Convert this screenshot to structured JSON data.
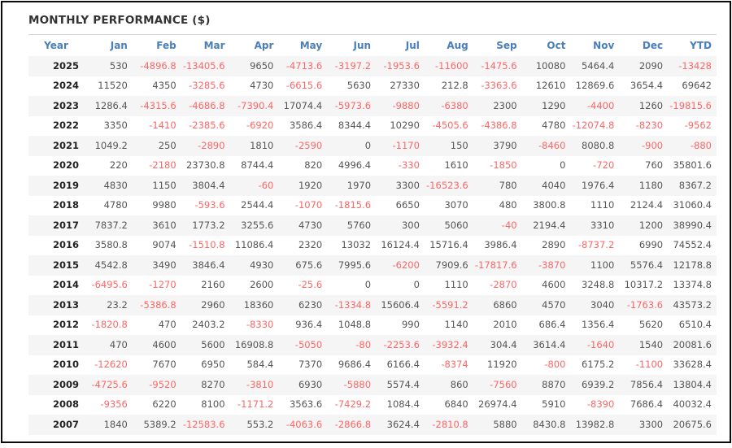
{
  "title": "MONTHLY PERFORMANCE ($)",
  "table": {
    "columns": [
      "Year",
      "Jan",
      "Feb",
      "Mar",
      "Apr",
      "May",
      "Jun",
      "Jul",
      "Aug",
      "Sep",
      "Oct",
      "Nov",
      "Dec",
      "YTD"
    ],
    "rows": [
      [
        "2025",
        "530",
        "-4896.8",
        "-13405.6",
        "9650",
        "-4713.6",
        "-3197.2",
        "-1953.6",
        "-11600",
        "-1475.6",
        "10080",
        "5464.4",
        "2090",
        "-13428"
      ],
      [
        "2024",
        "11520",
        "4350",
        "-3285.6",
        "4730",
        "-6615.6",
        "5630",
        "27330",
        "212.8",
        "-3363.6",
        "12610",
        "12869.6",
        "3654.4",
        "69642"
      ],
      [
        "2023",
        "1286.4",
        "-4315.6",
        "-4686.8",
        "-7390.4",
        "17074.4",
        "-5973.6",
        "-9880",
        "-6380",
        "2300",
        "1290",
        "-4400",
        "1260",
        "-19815.6"
      ],
      [
        "2022",
        "3350",
        "-1410",
        "-2385.6",
        "-6920",
        "3586.4",
        "8344.4",
        "10290",
        "-4505.6",
        "-4386.8",
        "4780",
        "-12074.8",
        "-8230",
        "-9562"
      ],
      [
        "2021",
        "1049.2",
        "250",
        "-2890",
        "1810",
        "-2590",
        "0",
        "-1170",
        "150",
        "3790",
        "-8460",
        "8080.8",
        "-900",
        "-880"
      ],
      [
        "2020",
        "220",
        "-2180",
        "23730.8",
        "8744.4",
        "820",
        "4996.4",
        "-330",
        "1610",
        "-1850",
        "0",
        "-720",
        "760",
        "35801.6"
      ],
      [
        "2019",
        "4830",
        "1150",
        "3804.4",
        "-60",
        "1920",
        "1970",
        "3300",
        "-16523.6",
        "780",
        "4040",
        "1976.4",
        "1180",
        "8367.2"
      ],
      [
        "2018",
        "4780",
        "9980",
        "-593.6",
        "2544.4",
        "-1070",
        "-1815.6",
        "6650",
        "3070",
        "480",
        "3800.8",
        "1110",
        "2124.4",
        "31060.4"
      ],
      [
        "2017",
        "7837.2",
        "3610",
        "1773.2",
        "3255.6",
        "4730",
        "5760",
        "300",
        "5060",
        "-40",
        "2194.4",
        "3310",
        "1200",
        "38990.4"
      ],
      [
        "2016",
        "3580.8",
        "9074",
        "-1510.8",
        "11086.4",
        "2320",
        "13032",
        "16124.4",
        "15716.4",
        "3986.4",
        "2890",
        "-8737.2",
        "6990",
        "74552.4"
      ],
      [
        "2015",
        "4542.8",
        "3490",
        "3846.4",
        "4930",
        "675.6",
        "7995.6",
        "-6200",
        "7909.6",
        "-17817.6",
        "-3870",
        "1100",
        "5576.4",
        "12178.8"
      ],
      [
        "2014",
        "-6495.6",
        "-1270",
        "2160",
        "2600",
        "-25.6",
        "0",
        "0",
        "1110",
        "-2870",
        "4600",
        "3248.8",
        "10317.2",
        "13374.8"
      ],
      [
        "2013",
        "23.2",
        "-5386.8",
        "2960",
        "18360",
        "6230",
        "-1334.8",
        "15606.4",
        "-5591.2",
        "6860",
        "4570",
        "3040",
        "-1763.6",
        "43573.2"
      ],
      [
        "2012",
        "-1820.8",
        "470",
        "2403.2",
        "-8330",
        "936.4",
        "1048.8",
        "990",
        "1140",
        "2010",
        "686.4",
        "1356.4",
        "5620",
        "6510.4"
      ],
      [
        "2011",
        "470",
        "4600",
        "5600",
        "16908.8",
        "-5050",
        "-80",
        "-2253.6",
        "-3932.4",
        "304.4",
        "3614.4",
        "-1640",
        "1540",
        "20081.6"
      ],
      [
        "2010",
        "-12620",
        "7670",
        "6950",
        "584.4",
        "7370",
        "9686.4",
        "6166.4",
        "-8374",
        "11920",
        "-800",
        "6175.2",
        "-1100",
        "33628.4"
      ],
      [
        "2009",
        "-4725.6",
        "-9520",
        "8270",
        "-3810",
        "6930",
        "-5880",
        "5574.4",
        "860",
        "-7560",
        "8870",
        "6939.2",
        "7856.4",
        "13804.4"
      ],
      [
        "2008",
        "-9356",
        "6220",
        "8100",
        "-1171.2",
        "3563.6",
        "-7429.2",
        "1084.4",
        "6840",
        "26974.4",
        "5910",
        "-8390",
        "7686.4",
        "40032.4"
      ],
      [
        "2007",
        "1840",
        "5389.2",
        "-12583.6",
        "553.2",
        "-4063.6",
        "-2866.8",
        "3624.4",
        "-2810.8",
        "5880",
        "8430.8",
        "13982.8",
        "3300",
        "20675.6"
      ]
    ]
  },
  "colors": {
    "title_text": "#333333",
    "header_text": "#4a7ebc",
    "year_text": "#222222",
    "positive_value": "#555555",
    "negative_value": "#ff6666",
    "stripe_row": "#f5f5f5",
    "divider": "#d8d8d8",
    "frame_border": "#0b0b0b"
  }
}
